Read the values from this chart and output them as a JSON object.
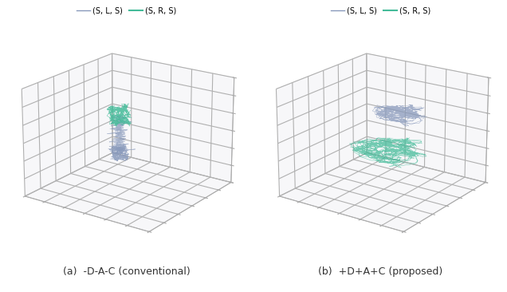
{
  "fig_width": 6.36,
  "fig_height": 3.66,
  "dpi": 100,
  "background_color": "#ffffff",
  "color_sls": "#8899bb",
  "color_srs": "#44bb99",
  "legend_labels": [
    "(S, L, S)",
    "(S, R, S)"
  ],
  "subplot_titles": [
    "(a)  -D-A-C (conventional)",
    "(b)  +D+A+C (proposed)"
  ],
  "grid_color": "#cccccc",
  "pane_color": "#f0f0f5",
  "elev": 20,
  "azim": -55
}
